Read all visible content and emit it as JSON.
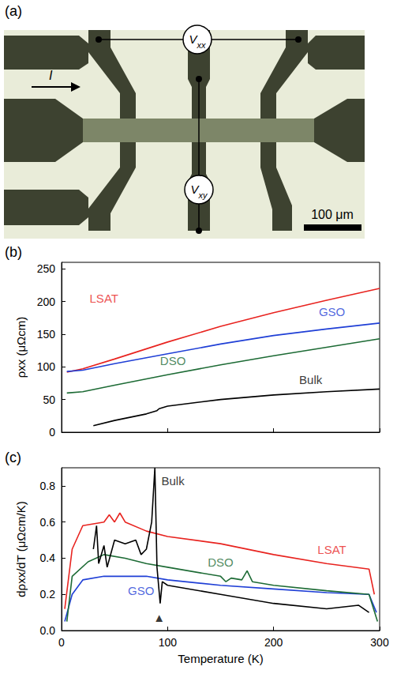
{
  "panel_a": {
    "panel_label": "(a)",
    "voltage_labels": [
      "Vxx",
      "Vxy"
    ],
    "current_label": "I",
    "scale_bar": "100 μm"
  },
  "chart_data": [
    {
      "type": "line",
      "panel_label": "(b)",
      "ylabel": "ρxx (μΩcm)",
      "xlim": [
        0,
        300
      ],
      "xticks": [
        0,
        100,
        200,
        300
      ],
      "ylim": [
        0,
        260
      ],
      "yticks": [
        0,
        50,
        100,
        150,
        200,
        250
      ],
      "tick_labels": "y",
      "grid": false,
      "series": [
        {
          "name": "LSAT",
          "color": "#e8231f",
          "x": [
            5,
            20,
            50,
            100,
            150,
            200,
            250,
            300
          ],
          "values": [
            92,
            97,
            112,
            138,
            162,
            183,
            202,
            220
          ]
        },
        {
          "name": "GSO",
          "color": "#1f3fd6",
          "x": [
            5,
            20,
            50,
            100,
            150,
            200,
            250,
            300
          ],
          "values": [
            93,
            95,
            105,
            120,
            135,
            148,
            158,
            167
          ]
        },
        {
          "name": "DSO",
          "color": "#1d6b35",
          "x": [
            5,
            20,
            50,
            100,
            150,
            200,
            250,
            300
          ],
          "values": [
            60,
            62,
            72,
            88,
            103,
            117,
            130,
            143
          ]
        },
        {
          "name": "Bulk",
          "color": "#000000",
          "x": [
            30,
            50,
            80,
            90,
            92,
            100,
            150,
            200,
            250,
            300
          ],
          "values": [
            10,
            18,
            28,
            33,
            36,
            40,
            50,
            57,
            62,
            66
          ]
        }
      ],
      "annotations": [
        {
          "text": "LSAT",
          "x": 40,
          "y": 205
        },
        {
          "text": "GSO",
          "x": 255,
          "y": 185
        },
        {
          "text": "DSO",
          "x": 105,
          "y": 110
        },
        {
          "text": "Bulk",
          "x": 235,
          "y": 80
        }
      ]
    },
    {
      "type": "line",
      "panel_label": "(c)",
      "ylabel": "dρxx/dT (μΩcm/K)",
      "xlabel": "Temperature (K)",
      "xlim": [
        0,
        300
      ],
      "xticks": [
        0,
        100,
        200,
        300
      ],
      "ylim": [
        0,
        0.9
      ],
      "yticks": [
        {
          "value": 0,
          "label": "0.0"
        },
        0.2,
        0.4,
        0.6,
        0.8
      ],
      "grid": false,
      "series": [
        {
          "name": "LSAT",
          "color": "#e8231f",
          "x": [
            3,
            10,
            20,
            40,
            45,
            50,
            55,
            60,
            80,
            100,
            150,
            200,
            250,
            290,
            295
          ],
          "values": [
            0.12,
            0.45,
            0.58,
            0.6,
            0.64,
            0.6,
            0.65,
            0.6,
            0.55,
            0.52,
            0.48,
            0.42,
            0.37,
            0.34,
            0.2
          ]
        },
        {
          "name": "GSO",
          "color": "#1f3fd6",
          "x": [
            3,
            10,
            20,
            40,
            80,
            100,
            150,
            200,
            250,
            290,
            297
          ],
          "values": [
            0.05,
            0.2,
            0.28,
            0.3,
            0.3,
            0.28,
            0.25,
            0.23,
            0.21,
            0.2,
            0.1
          ]
        },
        {
          "name": "DSO",
          "color": "#1d6b35",
          "x": [
            5,
            10,
            25,
            40,
            60,
            80,
            100,
            150,
            155,
            160,
            170,
            175,
            180,
            200,
            250,
            290,
            298
          ],
          "values": [
            0.05,
            0.3,
            0.38,
            0.42,
            0.4,
            0.37,
            0.35,
            0.3,
            0.27,
            0.29,
            0.28,
            0.33,
            0.27,
            0.25,
            0.22,
            0.2,
            0.05
          ]
        },
        {
          "name": "Bulk",
          "color": "#000000",
          "x": [
            30,
            33,
            35,
            40,
            43,
            50,
            60,
            70,
            75,
            80,
            85,
            88,
            90,
            93,
            95,
            100,
            150,
            200,
            250,
            280,
            290
          ],
          "values": [
            0.45,
            0.58,
            0.37,
            0.47,
            0.35,
            0.5,
            0.48,
            0.5,
            0.42,
            0.45,
            0.6,
            0.9,
            0.35,
            0.15,
            0.27,
            0.25,
            0.2,
            0.15,
            0.12,
            0.14,
            0.1
          ]
        }
      ],
      "annotations": [
        {
          "text": "Bulk",
          "x": 105,
          "y": 0.83
        },
        {
          "text": "LSAT",
          "x": 255,
          "y": 0.45
        },
        {
          "text": "DSO",
          "x": 150,
          "y": 0.38
        },
        {
          "text": "GSO",
          "x": 75,
          "y": 0.22
        },
        {
          "text": "▲",
          "x": 92,
          "y": 0.07
        }
      ]
    }
  ]
}
